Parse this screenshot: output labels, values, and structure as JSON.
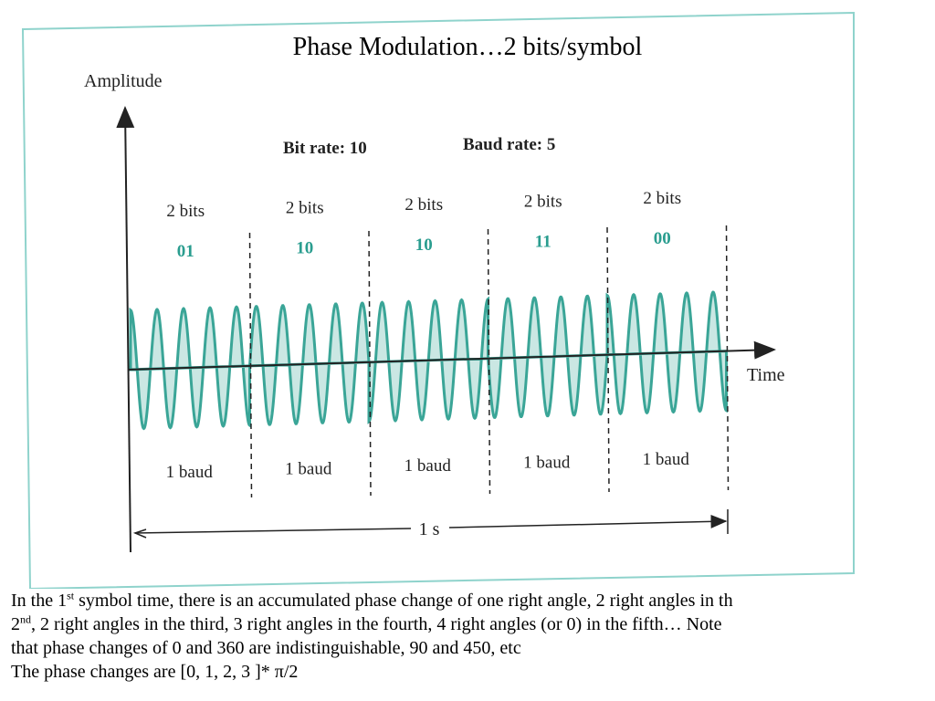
{
  "title": "Phase Modulation…2 bits/symbol",
  "diagram": {
    "y_axis_label": "Amplitude",
    "x_axis_label": "Time",
    "bit_rate": "Bit rate: 10",
    "baud_rate": "Baud rate: 5",
    "symbols": [
      {
        "bits_label": "2 bits",
        "code": "01",
        "baud_label": "1 baud"
      },
      {
        "bits_label": "2 bits",
        "code": "10",
        "baud_label": "1 baud"
      },
      {
        "bits_label": "2 bits",
        "code": "10",
        "baud_label": "1 baud"
      },
      {
        "bits_label": "2 bits",
        "code": "11",
        "baud_label": "1 baud"
      },
      {
        "bits_label": "2 bits",
        "code": "00",
        "baud_label": "1 baud"
      }
    ],
    "duration": "1 s"
  },
  "caption": {
    "line1_a": "In the 1",
    "line1_sup": "st",
    "line1_b": " symbol time, there is an accumulated phase change of one right angle, 2 right angles in th",
    "line2_a": "2",
    "line2_sup": "nd",
    "line2_b": ", 2 right angles in the third, 3 right angles in the fourth, 4 right angles (or 0) in the fifth… Note",
    "line3": "that phase changes of 0 and 360 are indistinguishable, 90 and 450, etc",
    "line4": "The phase changes are [0, 1, 2, 3 ]* π/2"
  }
}
